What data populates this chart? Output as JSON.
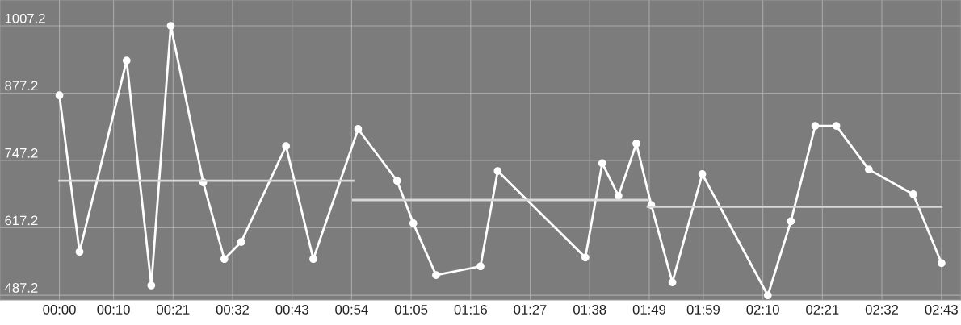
{
  "chart_data": {
    "type": "line",
    "xlim": [
      -0.183,
      2.777
    ],
    "ylim": [
      478,
      1057
    ],
    "xticks": [
      {
        "value": 0,
        "label": "00:00"
      },
      {
        "value": 0.1667,
        "label": "00:10"
      },
      {
        "value": 0.35,
        "label": "00:21"
      },
      {
        "value": 0.5333,
        "label": "00:32"
      },
      {
        "value": 0.7167,
        "label": "00:43"
      },
      {
        "value": 0.9,
        "label": "00:54"
      },
      {
        "value": 1.0833,
        "label": "01:05"
      },
      {
        "value": 1.2667,
        "label": "01:16"
      },
      {
        "value": 1.45,
        "label": "01:27"
      },
      {
        "value": 1.6333,
        "label": "01:38"
      },
      {
        "value": 1.8167,
        "label": "01:49"
      },
      {
        "value": 1.9833,
        "label": "01:59"
      },
      {
        "value": 2.1667,
        "label": "02:10"
      },
      {
        "value": 2.35,
        "label": "02:21"
      },
      {
        "value": 2.5333,
        "label": "02:32"
      },
      {
        "value": 2.7167,
        "label": "02:43"
      }
    ],
    "yticks": [
      487.2,
      617.2,
      747.2,
      877.2,
      1007.2
    ],
    "grid": true,
    "series": [
      {
        "color": "#ffffff",
        "marker": "circle",
        "x": [
          0,
          0.062,
          0.207,
          0.283,
          0.343,
          0.443,
          0.508,
          0.56,
          0.698,
          0.782,
          0.92,
          1.04,
          1.09,
          1.16,
          1.297,
          1.35,
          1.62,
          1.672,
          1.722,
          1.777,
          1.823,
          1.888,
          1.98,
          2.182,
          2.253,
          2.328,
          2.393,
          2.493,
          2.63,
          2.717
        ],
        "values": [
          873,
          571,
          940,
          506,
          1007,
          705,
          557,
          590,
          775,
          557,
          808,
          708,
          626,
          526,
          543,
          727,
          560,
          742,
          679,
          780,
          661,
          512,
          721,
          487,
          630,
          814,
          814,
          730,
          682,
          549
        ]
      },
      {
        "color": "#d8d8d8",
        "x": [
          0,
          0.905
        ],
        "values": [
          708,
          708
        ]
      },
      {
        "color": "#d8d8d8",
        "x": [
          0.905,
          1.812
        ],
        "values": [
          671,
          671
        ]
      },
      {
        "color": "#d8d8d8",
        "x": [
          1.812,
          2.717
        ],
        "values": [
          658,
          658
        ]
      }
    ]
  }
}
